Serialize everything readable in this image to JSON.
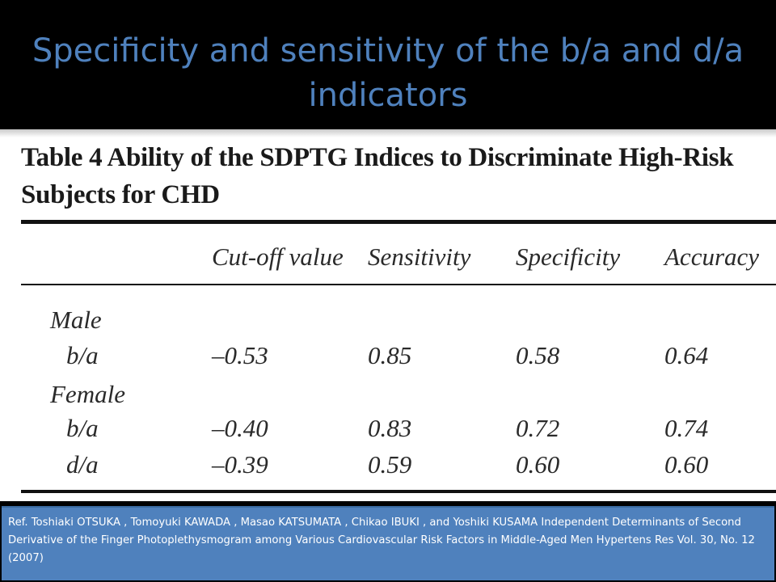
{
  "slide": {
    "title": "Specificity and sensitivity of the b/a and d/a indicators"
  },
  "table": {
    "caption": "Table 4    Ability of the SDPTG Indices to Discriminate High-Risk Subjects for CHD",
    "columns": [
      "Cut-off value",
      "Sensitivity",
      "Specificity",
      "Accuracy"
    ],
    "groups": [
      {
        "label": "Male",
        "rows": [
          {
            "label": "b/a",
            "cells": [
              "–0.53",
              "0.85",
              "0.58",
              "0.64"
            ]
          }
        ]
      },
      {
        "label": "Female",
        "rows": [
          {
            "label": "b/a",
            "cells": [
              "–0.40",
              "0.83",
              "0.72",
              "0.74"
            ]
          },
          {
            "label": "d/a",
            "cells": [
              "–0.39",
              "0.59",
              "0.60",
              "0.60"
            ]
          }
        ]
      }
    ]
  },
  "reference": {
    "text": "Ref. Toshiaki OTSUKA , Tomoyuki KAWADA , Masao KATSUMATA , Chikao IBUKI , and Yoshiki KUSAMA Independent Determinants of Second Derivative of the Finger Photoplethysmogram among Various Cardiovascular Risk Factors in Middle-Aged Men Hypertens Res Vol. 30, No. 12 (2007)"
  },
  "colors": {
    "background": "#000000",
    "title": "#4f81bd",
    "reference_box": "#4f81bd",
    "reference_text": "#ffffff",
    "table_background": "#ffffff"
  }
}
